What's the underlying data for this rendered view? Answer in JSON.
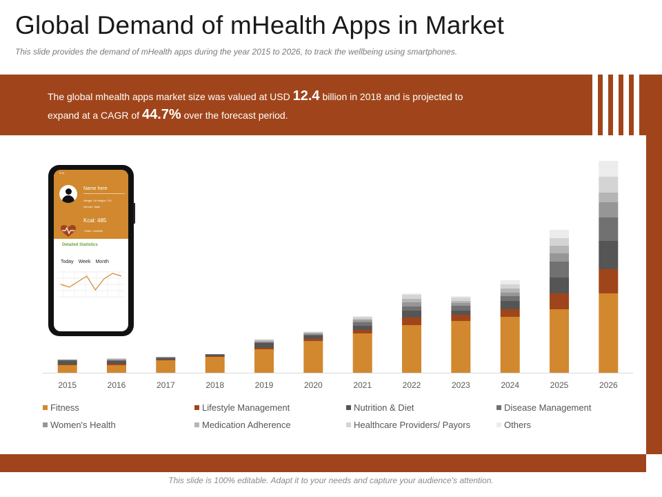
{
  "header": {
    "title": "Global Demand of mHealth Apps in Market",
    "subtitle": "This slide provides the demand of mHealth apps during the year 2015 to 2026, to track the wellbeing using smartphones."
  },
  "banner": {
    "part1": "The global mhealth apps market size was valued at USD ",
    "value1": "12.4",
    "part2": " billion in 2018 and is projected to expand at a CAGR of ",
    "value2": "44.7%",
    "part3": " over the forecast period."
  },
  "phone": {
    "status": "9:41",
    "name": "Name here",
    "meta1": "Weight: 40    Height: 176",
    "meta2": "Gender: Male",
    "kcal": "Kcal: 485",
    "stats": "+3462        +164500",
    "detail_label": "Detailed Statistics",
    "tabs": [
      "Today",
      "Week",
      "Month"
    ],
    "graph_points": [
      4,
      3,
      5,
      7,
      2,
      6,
      8,
      7
    ]
  },
  "footer": "This slide is 100% editable. Adapt it to your needs and capture your audience's attention.",
  "colors": {
    "brand": "#a0451b",
    "series": [
      "#d1882e",
      "#a0451b",
      "#555555",
      "#717171",
      "#969696",
      "#b5b5b5",
      "#d4d4d4",
      "#ececec"
    ]
  },
  "chart_data": {
    "type": "bar",
    "stacked": true,
    "title": "",
    "xlabel": "",
    "ylabel": "",
    "ylim": [
      0,
      310
    ],
    "categories": [
      "2015",
      "2016",
      "2017",
      "2018",
      "2019",
      "2020",
      "2021",
      "2022",
      "2023",
      "2024",
      "2025",
      "2026"
    ],
    "series": [
      {
        "name": "Fitness",
        "values": [
          11,
          11,
          18,
          23,
          34,
          46,
          57,
          69,
          75,
          81,
          92,
          115
        ]
      },
      {
        "name": "Lifestyle Management",
        "values": [
          1,
          2,
          1,
          1,
          2,
          3,
          5,
          11,
          9,
          11,
          23,
          35
        ]
      },
      {
        "name": "Nutrition & Diet",
        "values": [
          5,
          4,
          2,
          2,
          7,
          5,
          6,
          10,
          6,
          12,
          23,
          41
        ]
      },
      {
        "name": "Disease Management",
        "values": [
          2,
          1,
          1,
          1,
          1,
          1,
          5,
          6,
          7,
          7,
          23,
          34
        ]
      },
      {
        "name": "Women's Health",
        "values": [
          0,
          1,
          1,
          0,
          1,
          2,
          3,
          6,
          4,
          5,
          12,
          22
        ]
      },
      {
        "name": "Medication Adherence",
        "values": [
          0,
          1,
          0,
          0,
          2,
          1,
          2,
          5,
          3,
          6,
          11,
          14
        ]
      },
      {
        "name": "Healthcare Providers/ Payors",
        "values": [
          0,
          1,
          0,
          0,
          1,
          1,
          3,
          6,
          5,
          6,
          11,
          23
        ]
      },
      {
        "name": "Others",
        "values": [
          0,
          0,
          0,
          0,
          1,
          1,
          1,
          2,
          2,
          6,
          12,
          23
        ]
      }
    ]
  }
}
